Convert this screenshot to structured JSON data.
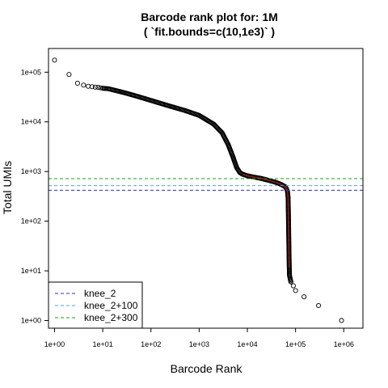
{
  "chart_data": {
    "type": "scatter",
    "title_line1": "Barcode rank plot for: 1M",
    "title_line2": "( `fit.bounds=c(10,1e3)` )",
    "xlabel": "Barcode Rank",
    "ylabel": "Total UMIs",
    "x_scale": "log",
    "y_scale": "log",
    "xlim": [
      0.75,
      2500000
    ],
    "ylim": [
      0.7,
      300000
    ],
    "x_ticks": [
      {
        "value": 1,
        "label": "1e+00"
      },
      {
        "value": 10,
        "label": "1e+01"
      },
      {
        "value": 100,
        "label": "1e+02"
      },
      {
        "value": 1000,
        "label": "1e+03"
      },
      {
        "value": 10000,
        "label": "1e+04"
      },
      {
        "value": 100000,
        "label": "1e+05"
      },
      {
        "value": 1000000,
        "label": "1e+06"
      }
    ],
    "y_ticks": [
      {
        "value": 1,
        "label": "1e+00"
      },
      {
        "value": 10,
        "label": "1e+01"
      },
      {
        "value": 100,
        "label": "1e+02"
      },
      {
        "value": 1000,
        "label": "1e+03"
      },
      {
        "value": 10000,
        "label": "1e+04"
      },
      {
        "value": 100000,
        "label": "1e+05"
      }
    ],
    "grid": false,
    "legend_position": "bottom-left",
    "hlines": [
      {
        "name": "knee_2",
        "y": 420,
        "color": "#2d2dd8"
      },
      {
        "name": "knee_2+100",
        "y": 520,
        "color": "#4aa8d8"
      },
      {
        "name": "knee_2+300",
        "y": 720,
        "color": "#1f9e1f"
      }
    ],
    "curve_points": [
      [
        1,
        175000
      ],
      [
        2,
        90000
      ],
      [
        3,
        60000
      ],
      [
        4,
        55000
      ],
      [
        5,
        52000
      ],
      [
        6,
        51000
      ],
      [
        7,
        50000
      ],
      [
        8,
        49500
      ],
      [
        9,
        48500
      ],
      [
        10,
        47500
      ],
      [
        13,
        46500
      ],
      [
        15,
        45000
      ],
      [
        20,
        42000
      ],
      [
        30,
        38000
      ],
      [
        50,
        33000
      ],
      [
        100,
        27000
      ],
      [
        200,
        22000
      ],
      [
        500,
        17000
      ],
      [
        1000,
        13500
      ],
      [
        2000,
        9000
      ],
      [
        3000,
        6000
      ],
      [
        4000,
        3500
      ],
      [
        5000,
        2000
      ],
      [
        6000,
        1200
      ],
      [
        7000,
        950
      ],
      [
        8000,
        880
      ],
      [
        10000,
        820
      ],
      [
        15000,
        760
      ],
      [
        20000,
        720
      ],
      [
        30000,
        650
      ],
      [
        40000,
        600
      ],
      [
        50000,
        550
      ],
      [
        60000,
        500
      ],
      [
        65000,
        450
      ],
      [
        68000,
        400
      ],
      [
        70000,
        300
      ],
      [
        71000,
        150
      ],
      [
        72000,
        60
      ],
      [
        73000,
        25
      ],
      [
        74000,
        12
      ],
      [
        75000,
        8
      ],
      [
        80000,
        6
      ],
      [
        90000,
        5
      ],
      [
        100000,
        4
      ],
      [
        150000,
        3
      ],
      [
        300000,
        2
      ],
      [
        900000,
        1
      ]
    ],
    "fit_segment": [
      [
        8000,
        880
      ],
      [
        10000,
        820
      ],
      [
        15000,
        760
      ],
      [
        20000,
        720
      ],
      [
        30000,
        650
      ],
      [
        40000,
        600
      ],
      [
        50000,
        550
      ],
      [
        60000,
        500
      ],
      [
        65000,
        450
      ],
      [
        68000,
        400
      ],
      [
        70000,
        300
      ],
      [
        71000,
        150
      ],
      [
        72000,
        60
      ],
      [
        73000,
        25
      ],
      [
        74000,
        12
      ]
    ],
    "fit_color": "#8b1a1a",
    "point_color": "#000000"
  }
}
